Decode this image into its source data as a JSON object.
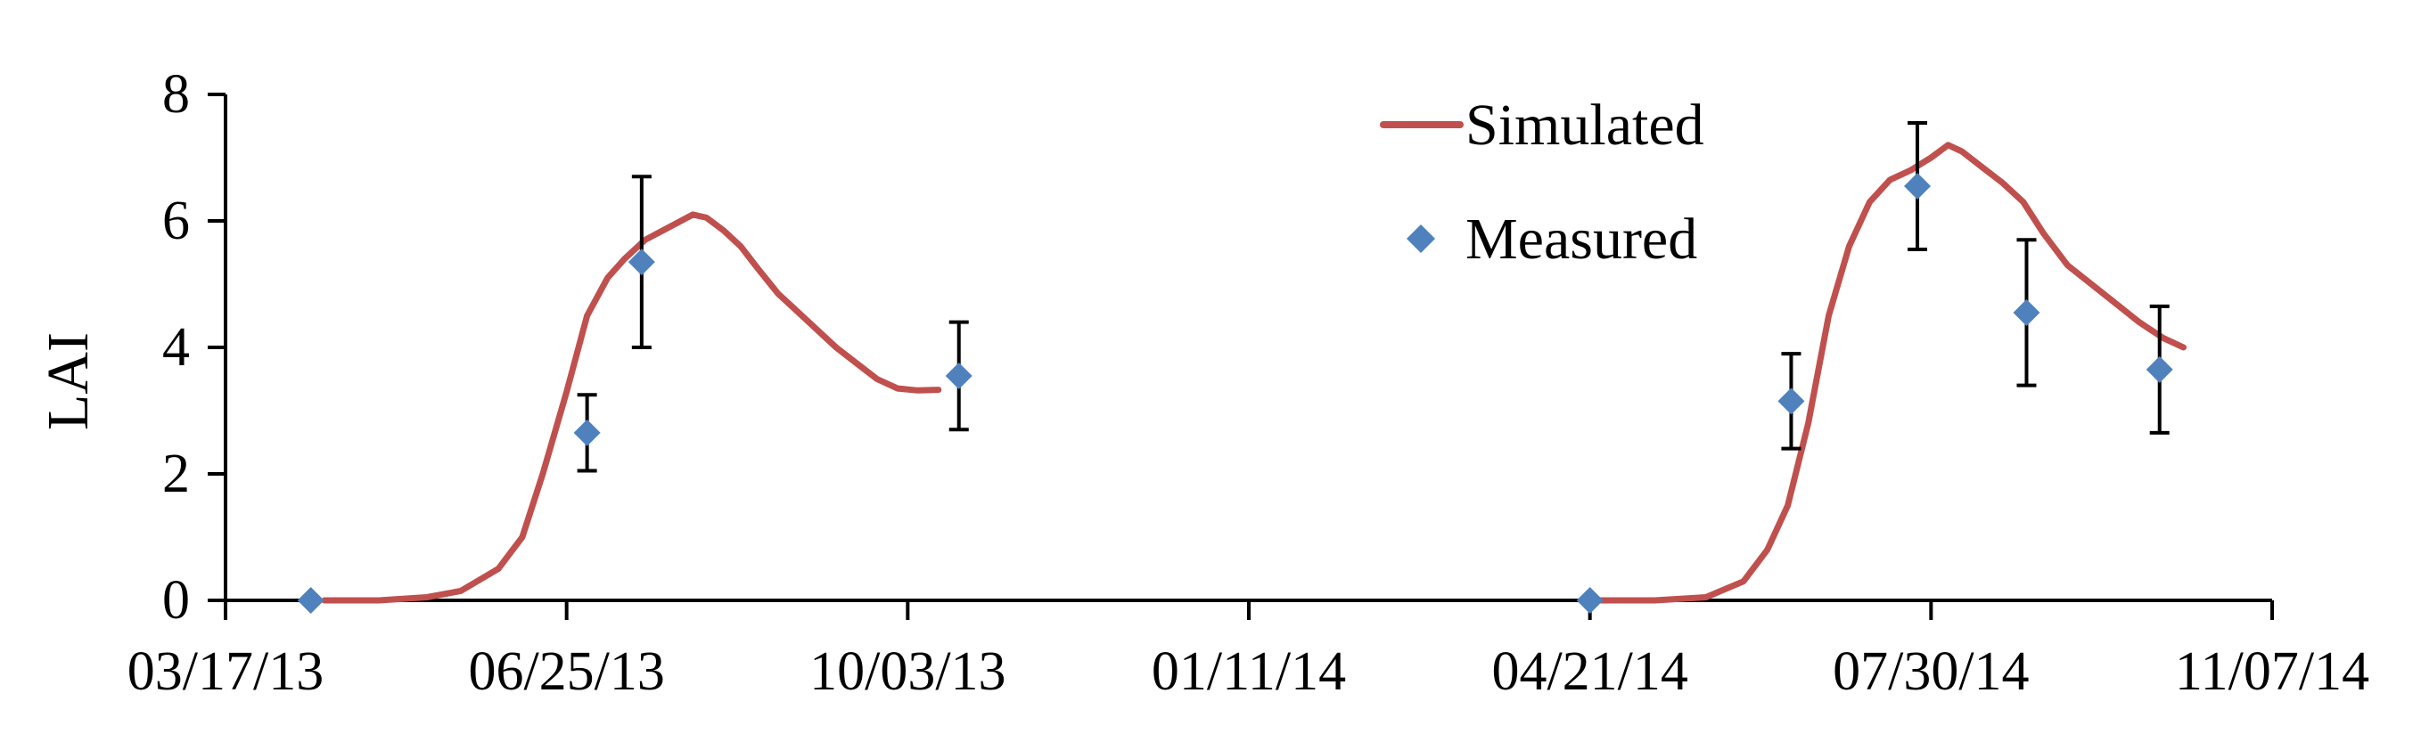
{
  "chart_data": {
    "type": "line",
    "ylabel": "LAI",
    "xlabel": "",
    "x_ticks": [
      "03/17/13",
      "06/25/13",
      "10/03/13",
      "01/11/14",
      "04/21/14",
      "07/30/14",
      "11/07/14"
    ],
    "x_range": [
      "2013-03-17",
      "2014-11-07"
    ],
    "ylim": [
      0,
      8
    ],
    "y_ticks": [
      0,
      2,
      4,
      6,
      8
    ],
    "grid": false,
    "legend_position": "top-center",
    "colors": {
      "simulated": "#c0504d",
      "measured": "#4f81bd",
      "error_bars": "#000000"
    },
    "series": [
      {
        "name": "Simulated",
        "kind": "line",
        "segments": [
          {
            "x": [
              "2013-04-15",
              "2013-05-01",
              "2013-05-15",
              "2013-05-25",
              "2013-06-05",
              "2013-06-12",
              "2013-06-18",
              "2013-06-25",
              "2013-07-01",
              "2013-07-07",
              "2013-07-12",
              "2013-07-18",
              "2013-07-25",
              "2013-08-01",
              "2013-08-05",
              "2013-08-10",
              "2013-08-15",
              "2013-08-20",
              "2013-08-26",
              "2013-09-01",
              "2013-09-06",
              "2013-09-12",
              "2013-09-18",
              "2013-09-24",
              "2013-09-30",
              "2013-10-06",
              "2013-10-12"
            ],
            "y": [
              0,
              0,
              0.05,
              0.15,
              0.5,
              1.0,
              2.0,
              3.3,
              4.5,
              5.1,
              5.4,
              5.7,
              5.9,
              6.1,
              6.05,
              5.85,
              5.6,
              5.25,
              4.85,
              4.55,
              4.3,
              4.0,
              3.75,
              3.5,
              3.35,
              3.32,
              3.33
            ]
          },
          {
            "x": [
              "2014-04-21",
              "2014-05-10",
              "2014-05-25",
              "2014-06-05",
              "2014-06-12",
              "2014-06-18",
              "2014-06-24",
              "2014-06-30",
              "2014-07-06",
              "2014-07-12",
              "2014-07-18",
              "2014-07-24",
              "2014-07-30",
              "2014-08-04",
              "2014-08-08",
              "2014-08-14",
              "2014-08-20",
              "2014-08-26",
              "2014-09-01",
              "2014-09-08",
              "2014-09-15",
              "2014-09-22",
              "2014-09-29",
              "2014-10-06",
              "2014-10-12"
            ],
            "y": [
              0,
              0,
              0.05,
              0.3,
              0.8,
              1.5,
              2.8,
              4.5,
              5.6,
              6.3,
              6.65,
              6.8,
              7.0,
              7.2,
              7.1,
              6.85,
              6.6,
              6.3,
              5.8,
              5.3,
              5.0,
              4.7,
              4.4,
              4.15,
              4.0
            ]
          }
        ]
      },
      {
        "name": "Measured",
        "kind": "scatter",
        "x": [
          "2013-04-11",
          "2013-07-01",
          "2013-07-17",
          "2013-10-18",
          "2014-04-21",
          "2014-06-19",
          "2014-07-26",
          "2014-08-27",
          "2014-10-05"
        ],
        "y": [
          0,
          2.65,
          5.35,
          3.55,
          0,
          3.15,
          6.55,
          4.55,
          3.65
        ],
        "error": [
          0,
          0.6,
          1.35,
          0.85,
          0,
          0.75,
          1.0,
          1.15,
          1.0
        ]
      }
    ]
  }
}
